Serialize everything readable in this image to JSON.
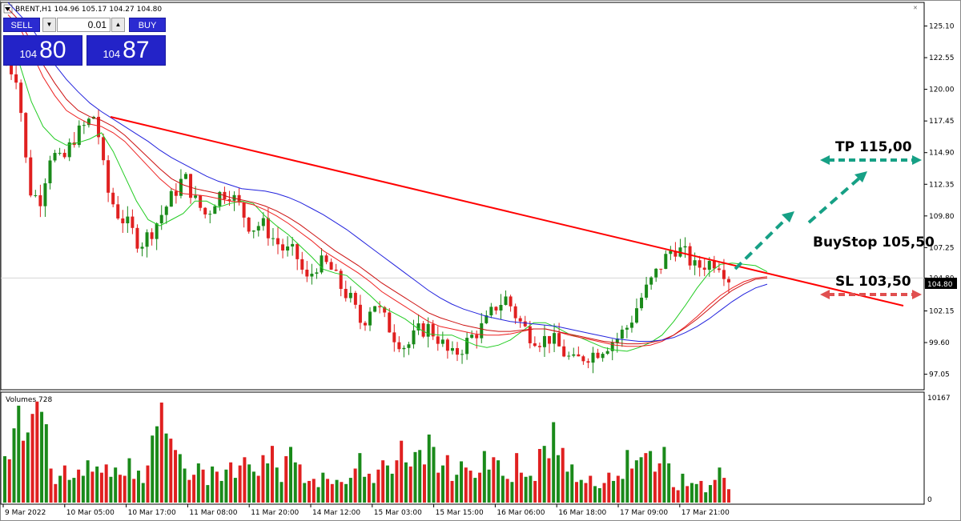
{
  "header": {
    "symbol_text": "BRENT,H1  104.96 105.17 104.27 104.80"
  },
  "trade_panel": {
    "sell_label": "SELL",
    "buy_label": "BUY",
    "lot_value": "0.01",
    "sell_price_small": "104",
    "sell_price_big": "80",
    "buy_price_small": "104",
    "buy_price_big": "87",
    "left_arrow": "▼",
    "right_arrow": "▲"
  },
  "chart_data": {
    "type": "candlestick",
    "symbol": "BRENT",
    "timeframe": "H1",
    "price_axis": {
      "ylim": [
        95.8,
        127.0
      ],
      "ticks": [
        "125.10",
        "122.55",
        "120.00",
        "117.45",
        "114.90",
        "112.35",
        "109.80",
        "107.25",
        "104.80",
        "102.15",
        "99.60",
        "97.05"
      ],
      "current_price_label": "104.80",
      "current_price": 104.8
    },
    "time_axis": {
      "labels": [
        "9 Mar 2022",
        "10 Mar 05:00",
        "10 Mar 17:00",
        "11 Mar 08:00",
        "11 Mar 20:00",
        "14 Mar 12:00",
        "15 Mar 03:00",
        "15 Mar 15:00",
        "16 Mar 06:00",
        "16 Mar 18:00",
        "17 Mar 09:00",
        "17 Mar 21:00"
      ]
    },
    "close_path": [
      122,
      121,
      112,
      111,
      115,
      114,
      116,
      117,
      118,
      112,
      110,
      109,
      107.5,
      108.5,
      110,
      111.5,
      113,
      111,
      109.8,
      111.5,
      111.8,
      110.5,
      108.8,
      109.2,
      108,
      107,
      106.8,
      104.5,
      106,
      105.8,
      104.2,
      103,
      101,
      103,
      101.5,
      100,
      99.2,
      100.5,
      100.8,
      99.8,
      98.4,
      99.2,
      100.2,
      101,
      102.5,
      103.2,
      101.5,
      100.3,
      99.8,
      100,
      98.9,
      98,
      98.5,
      98.8,
      99.4,
      100,
      101,
      103,
      104.5,
      106,
      107.3,
      106.8,
      105.6,
      106,
      106.2,
      104.8
    ],
    "indicators": {
      "ma_fast": [
        124,
        122,
        119,
        117,
        116,
        115.5,
        115.7,
        116,
        116.5,
        115,
        113,
        111,
        109.5,
        109,
        109.5,
        110,
        111,
        111,
        110.5,
        110.8,
        111,
        110.8,
        109.8,
        109,
        108.3,
        107.4,
        106.5,
        105.5,
        105.2,
        105,
        104.2,
        103.4,
        102.5,
        102,
        101.5,
        100.8,
        100.3,
        100.2,
        100.2,
        99.8,
        99.4,
        99.2,
        99.4,
        99.8,
        100.5,
        101.2,
        101.2,
        100.8,
        100.3,
        100,
        99.6,
        99.2,
        99,
        98.9,
        99.2,
        99.6,
        100.2,
        101.3,
        102.6,
        104,
        105.2,
        105.9,
        106,
        105.9,
        105.8,
        105.3
      ],
      "ma_mid_1": [
        126,
        125,
        123,
        121,
        119.5,
        118.3,
        117.7,
        117.2,
        117,
        116.5,
        115.8,
        114.8,
        113.8,
        112.8,
        112,
        111.6,
        111.5,
        111.4,
        111.2,
        111,
        110.9,
        110.7,
        110.3,
        109.8,
        109.2,
        108.5,
        107.8,
        107,
        106.4,
        105.8,
        105.2,
        104.5,
        103.7,
        103.1,
        102.5,
        101.9,
        101.3,
        100.9,
        100.7,
        100.5,
        100.3,
        100.2,
        100.2,
        100.3,
        100.5,
        100.7,
        100.7,
        100.5,
        100.2,
        100,
        99.8,
        99.6,
        99.4,
        99.3,
        99.3,
        99.4,
        99.7,
        100.2,
        100.9,
        101.7,
        102.6,
        103.4,
        104,
        104.5,
        104.8,
        104.9
      ],
      "ma_mid_2": [
        126.5,
        125.5,
        123.8,
        122,
        120.5,
        119.2,
        118.3,
        117.8,
        117.5,
        117,
        116.3,
        115.4,
        114.5,
        113.6,
        112.8,
        112.3,
        112,
        111.8,
        111.6,
        111.3,
        111.1,
        110.9,
        110.6,
        110.2,
        109.7,
        109.1,
        108.4,
        107.7,
        107,
        106.4,
        105.8,
        105.1,
        104.4,
        103.8,
        103.2,
        102.6,
        102,
        101.6,
        101.3,
        101,
        100.8,
        100.6,
        100.5,
        100.5,
        100.6,
        100.7,
        100.7,
        100.5,
        100.3,
        100.1,
        99.9,
        99.7,
        99.6,
        99.5,
        99.5,
        99.6,
        99.8,
        100.2,
        100.8,
        101.5,
        102.3,
        103.1,
        103.8,
        104.3,
        104.7,
        104.8
      ],
      "ma_slow": [
        127,
        126,
        125,
        123.5,
        122,
        120.8,
        119.8,
        118.9,
        118.2,
        117.6,
        117,
        116.4,
        115.8,
        115.1,
        114.5,
        114,
        113.5,
        113,
        112.6,
        112.3,
        112,
        111.9,
        111.8,
        111.6,
        111.3,
        110.9,
        110.4,
        109.9,
        109.3,
        108.7,
        108,
        107.3,
        106.6,
        105.9,
        105.2,
        104.5,
        103.8,
        103.2,
        102.7,
        102.3,
        102,
        101.7,
        101.5,
        101.3,
        101.2,
        101.1,
        101,
        100.9,
        100.7,
        100.5,
        100.3,
        100.1,
        99.9,
        99.8,
        99.7,
        99.7,
        99.8,
        100,
        100.4,
        100.9,
        101.5,
        102.2,
        102.9,
        103.5,
        104,
        104.3
      ]
    },
    "annotations": {
      "tp_label": "TP 115,00",
      "buystop_label": "BuyStop 105,50",
      "sl_label": "SL 103,50",
      "tp_level": 115.0,
      "buystop_level": 105.5,
      "sl_level": 103.5,
      "trendline": [
        [
          118.5,
          0.19
        ],
        [
          103.0,
          1.0
        ]
      ]
    },
    "volume_panel": {
      "label": "Volumes 728",
      "axis_ticks": [
        "10167",
        "0"
      ],
      "max": 10167,
      "values": [
        4500,
        4200,
        7200,
        9400,
        6000,
        6800,
        8600,
        9800,
        8800,
        7600,
        3300,
        1800,
        2600,
        3600,
        2200,
        2400,
        3200,
        2600,
        4100,
        3000,
        3500,
        2900,
        3700,
        2500,
        3400,
        2700,
        2600,
        4300,
        2300,
        3100,
        1900,
        3600,
        6500,
        7400,
        9700,
        6700,
        6200,
        5100,
        4700,
        3300,
        2200,
        2700,
        3800,
        3200,
        1700,
        3500,
        3000,
        2100,
        3200,
        3900,
        2400,
        3600,
        4400,
        3700,
        3000,
        2600,
        4600,
        3800,
        5500,
        3400,
        2000,
        4500,
        5400,
        3900,
        3700,
        1900,
        2100,
        2300,
        1500,
        2900,
        2300,
        1800,
        2200,
        2000,
        1800,
        2400,
        3300,
        4800,
        2500,
        2800,
        1900,
        3200,
        4100,
        3600,
        2800,
        4100,
        6000,
        3900,
        3500,
        4900,
        5100,
        3700,
        6600,
        5400,
        2900,
        3600,
        4600,
        2100,
        2700,
        4000,
        3400,
        3100,
        2400,
        2900,
        5000,
        3200,
        4400,
        4100,
        2600,
        2300,
        2000,
        4800,
        2900,
        2500,
        2600,
        2100,
        5200,
        5500,
        4300,
        7800,
        4600,
        5300,
        3000,
        3700,
        2000,
        2200,
        1900,
        2600,
        1600,
        1400,
        1900,
        2900,
        2100,
        2600,
        2300,
        5100,
        3300,
        4100,
        4400,
        4800,
        5000,
        3000,
        3800,
        5400,
        3800,
        1500,
        1200,
        2800,
        1600,
        1900,
        1800,
        2100,
        1000,
        1700,
        2200,
        3400,
        2400,
        1300
      ]
    }
  }
}
